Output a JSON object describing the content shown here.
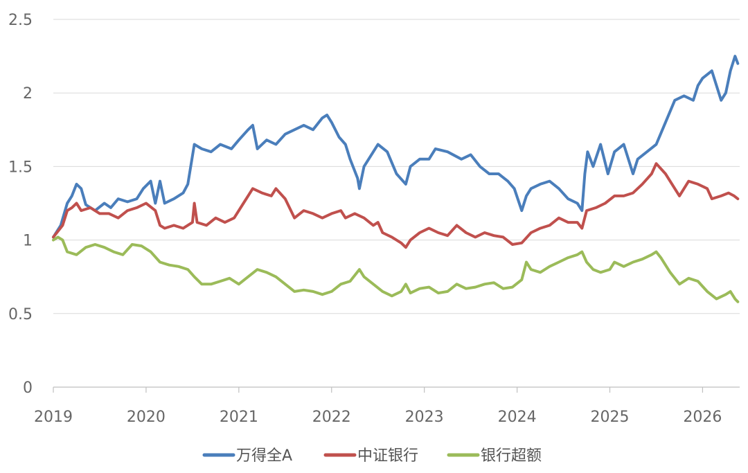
{
  "chart_data": {
    "type": "line",
    "title": "",
    "xlabel": "",
    "ylabel": "",
    "xlim": [
      2019,
      2026.4
    ],
    "ylim": [
      0,
      2.5
    ],
    "yticks": [
      "0",
      "0.5",
      "1",
      "1.5",
      "2",
      "2.5"
    ],
    "xticks": [
      "2019",
      "2020",
      "2021",
      "2022",
      "2023",
      "2024",
      "2025",
      "2026"
    ],
    "grid": true,
    "legend": "bottom",
    "series": [
      {
        "name": "万得全A",
        "color": "#4a7ebb",
        "points": [
          [
            2019.0,
            1.02
          ],
          [
            2019.08,
            1.1
          ],
          [
            2019.15,
            1.25
          ],
          [
            2019.2,
            1.3
          ],
          [
            2019.25,
            1.38
          ],
          [
            2019.3,
            1.35
          ],
          [
            2019.35,
            1.24
          ],
          [
            2019.45,
            1.2
          ],
          [
            2019.55,
            1.25
          ],
          [
            2019.62,
            1.22
          ],
          [
            2019.7,
            1.28
          ],
          [
            2019.8,
            1.26
          ],
          [
            2019.9,
            1.28
          ],
          [
            2019.97,
            1.35
          ],
          [
            2020.05,
            1.4
          ],
          [
            2020.1,
            1.25
          ],
          [
            2020.15,
            1.4
          ],
          [
            2020.2,
            1.25
          ],
          [
            2020.3,
            1.28
          ],
          [
            2020.4,
            1.32
          ],
          [
            2020.45,
            1.38
          ],
          [
            2020.52,
            1.65
          ],
          [
            2020.6,
            1.62
          ],
          [
            2020.7,
            1.6
          ],
          [
            2020.8,
            1.65
          ],
          [
            2020.92,
            1.62
          ],
          [
            2021.0,
            1.68
          ],
          [
            2021.1,
            1.75
          ],
          [
            2021.15,
            1.78
          ],
          [
            2021.2,
            1.62
          ],
          [
            2021.3,
            1.68
          ],
          [
            2021.4,
            1.65
          ],
          [
            2021.5,
            1.72
          ],
          [
            2021.6,
            1.75
          ],
          [
            2021.7,
            1.78
          ],
          [
            2021.8,
            1.75
          ],
          [
            2021.9,
            1.83
          ],
          [
            2021.95,
            1.85
          ],
          [
            2022.0,
            1.8
          ],
          [
            2022.08,
            1.7
          ],
          [
            2022.15,
            1.65
          ],
          [
            2022.2,
            1.55
          ],
          [
            2022.28,
            1.42
          ],
          [
            2022.3,
            1.35
          ],
          [
            2022.35,
            1.5
          ],
          [
            2022.45,
            1.6
          ],
          [
            2022.5,
            1.65
          ],
          [
            2022.6,
            1.6
          ],
          [
            2022.7,
            1.45
          ],
          [
            2022.8,
            1.38
          ],
          [
            2022.85,
            1.5
          ],
          [
            2022.95,
            1.55
          ],
          [
            2023.05,
            1.55
          ],
          [
            2023.12,
            1.62
          ],
          [
            2023.25,
            1.6
          ],
          [
            2023.4,
            1.55
          ],
          [
            2023.5,
            1.58
          ],
          [
            2023.6,
            1.5
          ],
          [
            2023.7,
            1.45
          ],
          [
            2023.8,
            1.45
          ],
          [
            2023.9,
            1.4
          ],
          [
            2023.97,
            1.35
          ],
          [
            2024.05,
            1.2
          ],
          [
            2024.1,
            1.3
          ],
          [
            2024.15,
            1.35
          ],
          [
            2024.25,
            1.38
          ],
          [
            2024.35,
            1.4
          ],
          [
            2024.45,
            1.35
          ],
          [
            2024.55,
            1.28
          ],
          [
            2024.65,
            1.25
          ],
          [
            2024.7,
            1.2
          ],
          [
            2024.73,
            1.45
          ],
          [
            2024.76,
            1.6
          ],
          [
            2024.82,
            1.5
          ],
          [
            2024.9,
            1.65
          ],
          [
            2024.98,
            1.45
          ],
          [
            2025.05,
            1.6
          ],
          [
            2025.15,
            1.65
          ],
          [
            2025.25,
            1.45
          ],
          [
            2025.3,
            1.55
          ],
          [
            2025.4,
            1.6
          ],
          [
            2025.5,
            1.65
          ],
          [
            2025.6,
            1.8
          ],
          [
            2025.7,
            1.95
          ],
          [
            2025.8,
            1.98
          ],
          [
            2025.9,
            1.95
          ],
          [
            2025.95,
            2.05
          ],
          [
            2026.0,
            2.1
          ],
          [
            2026.1,
            2.15
          ],
          [
            2026.2,
            1.95
          ],
          [
            2026.25,
            2.0
          ],
          [
            2026.3,
            2.15
          ],
          [
            2026.35,
            2.25
          ],
          [
            2026.38,
            2.2
          ]
        ]
      },
      {
        "name": "中证银行",
        "color": "#c0504d",
        "points": [
          [
            2019.0,
            1.02
          ],
          [
            2019.1,
            1.1
          ],
          [
            2019.15,
            1.2
          ],
          [
            2019.2,
            1.22
          ],
          [
            2019.25,
            1.25
          ],
          [
            2019.3,
            1.2
          ],
          [
            2019.4,
            1.22
          ],
          [
            2019.5,
            1.18
          ],
          [
            2019.6,
            1.18
          ],
          [
            2019.7,
            1.15
          ],
          [
            2019.8,
            1.2
          ],
          [
            2019.9,
            1.22
          ],
          [
            2020.0,
            1.25
          ],
          [
            2020.1,
            1.2
          ],
          [
            2020.15,
            1.1
          ],
          [
            2020.2,
            1.08
          ],
          [
            2020.3,
            1.1
          ],
          [
            2020.4,
            1.08
          ],
          [
            2020.5,
            1.12
          ],
          [
            2020.52,
            1.25
          ],
          [
            2020.55,
            1.12
          ],
          [
            2020.65,
            1.1
          ],
          [
            2020.75,
            1.15
          ],
          [
            2020.85,
            1.12
          ],
          [
            2020.95,
            1.15
          ],
          [
            2021.05,
            1.25
          ],
          [
            2021.1,
            1.3
          ],
          [
            2021.15,
            1.35
          ],
          [
            2021.25,
            1.32
          ],
          [
            2021.35,
            1.3
          ],
          [
            2021.4,
            1.35
          ],
          [
            2021.5,
            1.28
          ],
          [
            2021.6,
            1.15
          ],
          [
            2021.7,
            1.2
          ],
          [
            2021.8,
            1.18
          ],
          [
            2021.9,
            1.15
          ],
          [
            2022.0,
            1.18
          ],
          [
            2022.1,
            1.2
          ],
          [
            2022.15,
            1.15
          ],
          [
            2022.25,
            1.18
          ],
          [
            2022.35,
            1.15
          ],
          [
            2022.45,
            1.1
          ],
          [
            2022.5,
            1.12
          ],
          [
            2022.55,
            1.05
          ],
          [
            2022.65,
            1.02
          ],
          [
            2022.75,
            0.98
          ],
          [
            2022.8,
            0.95
          ],
          [
            2022.85,
            1.0
          ],
          [
            2022.95,
            1.05
          ],
          [
            2023.05,
            1.08
          ],
          [
            2023.15,
            1.05
          ],
          [
            2023.25,
            1.03
          ],
          [
            2023.35,
            1.1
          ],
          [
            2023.45,
            1.05
          ],
          [
            2023.55,
            1.02
          ],
          [
            2023.65,
            1.05
          ],
          [
            2023.75,
            1.03
          ],
          [
            2023.85,
            1.02
          ],
          [
            2023.95,
            0.97
          ],
          [
            2024.05,
            0.98
          ],
          [
            2024.15,
            1.05
          ],
          [
            2024.25,
            1.08
          ],
          [
            2024.35,
            1.1
          ],
          [
            2024.45,
            1.15
          ],
          [
            2024.55,
            1.12
          ],
          [
            2024.65,
            1.12
          ],
          [
            2024.7,
            1.08
          ],
          [
            2024.75,
            1.2
          ],
          [
            2024.85,
            1.22
          ],
          [
            2024.95,
            1.25
          ],
          [
            2025.05,
            1.3
          ],
          [
            2025.15,
            1.3
          ],
          [
            2025.25,
            1.32
          ],
          [
            2025.35,
            1.38
          ],
          [
            2025.45,
            1.45
          ],
          [
            2025.5,
            1.52
          ],
          [
            2025.6,
            1.45
          ],
          [
            2025.7,
            1.35
          ],
          [
            2025.75,
            1.3
          ],
          [
            2025.85,
            1.4
          ],
          [
            2025.95,
            1.38
          ],
          [
            2026.05,
            1.35
          ],
          [
            2026.1,
            1.28
          ],
          [
            2026.2,
            1.3
          ],
          [
            2026.28,
            1.32
          ],
          [
            2026.34,
            1.3
          ],
          [
            2026.38,
            1.28
          ]
        ]
      },
      {
        "name": "银行超额",
        "color": "#9bbb59",
        "points": [
          [
            2019.0,
            1.0
          ],
          [
            2019.05,
            1.02
          ],
          [
            2019.1,
            1.0
          ],
          [
            2019.15,
            0.92
          ],
          [
            2019.25,
            0.9
          ],
          [
            2019.35,
            0.95
          ],
          [
            2019.45,
            0.97
          ],
          [
            2019.55,
            0.95
          ],
          [
            2019.65,
            0.92
          ],
          [
            2019.75,
            0.9
          ],
          [
            2019.85,
            0.97
          ],
          [
            2019.95,
            0.96
          ],
          [
            2020.05,
            0.92
          ],
          [
            2020.15,
            0.85
          ],
          [
            2020.25,
            0.83
          ],
          [
            2020.35,
            0.82
          ],
          [
            2020.45,
            0.8
          ],
          [
            2020.52,
            0.75
          ],
          [
            2020.6,
            0.7
          ],
          [
            2020.7,
            0.7
          ],
          [
            2020.8,
            0.72
          ],
          [
            2020.9,
            0.74
          ],
          [
            2021.0,
            0.7
          ],
          [
            2021.1,
            0.75
          ],
          [
            2021.2,
            0.8
          ],
          [
            2021.3,
            0.78
          ],
          [
            2021.4,
            0.75
          ],
          [
            2021.5,
            0.7
          ],
          [
            2021.6,
            0.65
          ],
          [
            2021.7,
            0.66
          ],
          [
            2021.8,
            0.65
          ],
          [
            2021.9,
            0.63
          ],
          [
            2022.0,
            0.65
          ],
          [
            2022.1,
            0.7
          ],
          [
            2022.2,
            0.72
          ],
          [
            2022.3,
            0.8
          ],
          [
            2022.35,
            0.75
          ],
          [
            2022.45,
            0.7
          ],
          [
            2022.55,
            0.65
          ],
          [
            2022.65,
            0.62
          ],
          [
            2022.75,
            0.65
          ],
          [
            2022.8,
            0.7
          ],
          [
            2022.85,
            0.64
          ],
          [
            2022.95,
            0.67
          ],
          [
            2023.05,
            0.68
          ],
          [
            2023.15,
            0.64
          ],
          [
            2023.25,
            0.65
          ],
          [
            2023.35,
            0.7
          ],
          [
            2023.45,
            0.67
          ],
          [
            2023.55,
            0.68
          ],
          [
            2023.65,
            0.7
          ],
          [
            2023.75,
            0.71
          ],
          [
            2023.85,
            0.67
          ],
          [
            2023.95,
            0.68
          ],
          [
            2024.05,
            0.73
          ],
          [
            2024.1,
            0.85
          ],
          [
            2024.15,
            0.8
          ],
          [
            2024.25,
            0.78
          ],
          [
            2024.35,
            0.82
          ],
          [
            2024.45,
            0.85
          ],
          [
            2024.55,
            0.88
          ],
          [
            2024.65,
            0.9
          ],
          [
            2024.7,
            0.92
          ],
          [
            2024.75,
            0.85
          ],
          [
            2024.82,
            0.8
          ],
          [
            2024.9,
            0.78
          ],
          [
            2025.0,
            0.8
          ],
          [
            2025.05,
            0.85
          ],
          [
            2025.15,
            0.82
          ],
          [
            2025.25,
            0.85
          ],
          [
            2025.35,
            0.87
          ],
          [
            2025.45,
            0.9
          ],
          [
            2025.5,
            0.92
          ],
          [
            2025.55,
            0.88
          ],
          [
            2025.65,
            0.78
          ],
          [
            2025.75,
            0.7
          ],
          [
            2025.85,
            0.74
          ],
          [
            2025.95,
            0.72
          ],
          [
            2026.05,
            0.65
          ],
          [
            2026.15,
            0.6
          ],
          [
            2026.25,
            0.63
          ],
          [
            2026.3,
            0.65
          ],
          [
            2026.35,
            0.6
          ],
          [
            2026.38,
            0.58
          ]
        ]
      }
    ]
  }
}
